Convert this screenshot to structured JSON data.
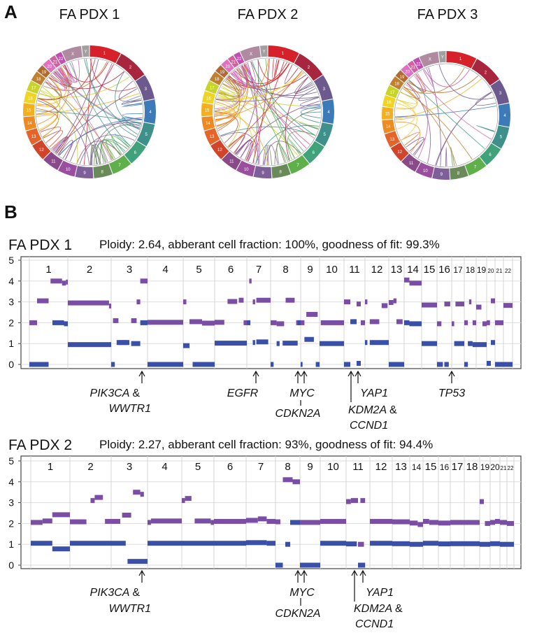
{
  "panel_a_label": "A",
  "panel_b_label": "B",
  "circos": {
    "titles": [
      "FA PDX 1",
      "FA PDX 2",
      "FA PDX 3"
    ],
    "chromosomes": [
      "1",
      "2",
      "3",
      "4",
      "5",
      "6",
      "7",
      "8",
      "9",
      "10",
      "11",
      "12",
      "13",
      "14",
      "15",
      "16",
      "17",
      "18",
      "19",
      "20",
      "21",
      "22",
      "X",
      "Y"
    ],
    "colors": [
      "#d6202a",
      "#a8253e",
      "#6c5a8f",
      "#3d7ab8",
      "#3f8f8a",
      "#3fa27a",
      "#5fb04a",
      "#6a8a5a",
      "#7e5f9a",
      "#9a4f9e",
      "#8a4a8a",
      "#d2442a",
      "#e4642a",
      "#ee8a22",
      "#f2b020",
      "#f0d422",
      "#c8d42a",
      "#c08030",
      "#b06a30",
      "#e070c0",
      "#d060a0",
      "#c050b0",
      "#b08aa0",
      "#a0a0a0"
    ]
  },
  "chart_data": [
    {
      "type": "line",
      "title": "FA PDX 1",
      "subtitle": "Ploidy: 2.64, abberant cell fraction: 100%, goodness of fit: 99.3%",
      "ylim": [
        0,
        5
      ],
      "yticks": [
        "0",
        "1",
        "2",
        "3",
        "4",
        "5"
      ],
      "grid": true,
      "categories": [
        "1",
        "2",
        "3",
        "4",
        "5",
        "6",
        "7",
        "8",
        "9",
        "10",
        "11",
        "12",
        "13",
        "14",
        "15",
        "16",
        "17",
        "18",
        "19",
        "20",
        "21",
        "22"
      ],
      "colors": {
        "total": "#7b4ea6",
        "minor": "#3a4fa8"
      },
      "series": [
        {
          "key": "total",
          "segments": [
            [
              1,
              1.2,
              2
            ],
            [
              1.2,
              1.5,
              3.05
            ],
            [
              1.55,
              1.85,
              4
            ],
            [
              1.85,
              1.95,
              3.9
            ],
            [
              1.95,
              2,
              3.95
            ],
            [
              2,
              2.95,
              2.95
            ],
            [
              2.95,
              3,
              2.8
            ],
            [
              3.05,
              3.2,
              2.1
            ],
            [
              3.2,
              3.45,
              1.05
            ],
            [
              3.55,
              3.7,
              2.1
            ],
            [
              3.7,
              3.8,
              3
            ],
            [
              3.8,
              4,
              4
            ],
            [
              4,
              5,
              2.02
            ],
            [
              5,
              5.1,
              3
            ],
            [
              5.2,
              5.6,
              2.05
            ],
            [
              5.6,
              6,
              1.98
            ],
            [
              6,
              6.3,
              2.02
            ],
            [
              6.4,
              6.7,
              3.02
            ],
            [
              6.75,
              6.9,
              3.08
            ],
            [
              6.9,
              7,
              2
            ],
            [
              7.1,
              7.2,
              4
            ],
            [
              7.25,
              7.35,
              3
            ],
            [
              7.4,
              8,
              3.08
            ],
            [
              8,
              8.2,
              2
            ],
            [
              8.2,
              8.45,
              1.95
            ],
            [
              8.5,
              8.8,
              3.08
            ],
            [
              8.85,
              9,
              2
            ],
            [
              9,
              9.2,
              2
            ],
            [
              9.3,
              9.9,
              2.4
            ],
            [
              10.05,
              11,
              2
            ],
            [
              11,
              11.3,
              3
            ],
            [
              11.4,
              11.6,
              2.05
            ],
            [
              11.6,
              11.8,
              2.9
            ],
            [
              11.8,
              12,
              2
            ],
            [
              12,
              12.1,
              3
            ],
            [
              12.2,
              12.6,
              2.05
            ],
            [
              12.7,
              12.95,
              2.82
            ],
            [
              13,
              13.3,
              2.97
            ],
            [
              13.3,
              13.5,
              3.05
            ],
            [
              13.5,
              13.9,
              2.05
            ],
            [
              14,
              14.3,
              4.05
            ],
            [
              14.3,
              15,
              3.9
            ],
            [
              15,
              16,
              2.85
            ],
            [
              16,
              16.3,
              1.95
            ],
            [
              16.5,
              16.9,
              2.9
            ],
            [
              17,
              17.2,
              1.95
            ],
            [
              17.3,
              18,
              2.9
            ],
            [
              18,
              18.3,
              2
            ],
            [
              18.4,
              18.6,
              3
            ],
            [
              18.7,
              19,
              2
            ],
            [
              19,
              19.5,
              2.75
            ],
            [
              19.6,
              20,
              1.95
            ],
            [
              20,
              20.4,
              2
            ],
            [
              20.5,
              21,
              3.05
            ],
            [
              21,
              22,
              2
            ],
            [
              22,
              23,
              2.83
            ]
          ]
        },
        {
          "key": "minor",
          "segments": [
            [
              1,
              1.5,
              0
            ],
            [
              1.6,
              1.9,
              2
            ],
            [
              1.9,
              2,
              1.95
            ],
            [
              2,
              3,
              0.95
            ],
            [
              3,
              3.1,
              0
            ],
            [
              3.15,
              3.5,
              1.05
            ],
            [
              3.55,
              3.8,
              1
            ],
            [
              3.8,
              4,
              2
            ],
            [
              4,
              5,
              0
            ],
            [
              5,
              5.2,
              0.9
            ],
            [
              5.3,
              6,
              0
            ],
            [
              6,
              7,
              1.02
            ],
            [
              7,
              7.15,
              2
            ],
            [
              7.25,
              7.35,
              1.05
            ],
            [
              7.4,
              7.9,
              1.08
            ],
            [
              8,
              8.1,
              0
            ],
            [
              8.2,
              8.3,
              1
            ],
            [
              8.4,
              8.9,
              1.02
            ],
            [
              8.9,
              9,
              2
            ],
            [
              9,
              9.1,
              0
            ],
            [
              9.2,
              9.7,
              1.2
            ],
            [
              9.8,
              10,
              0
            ],
            [
              10,
              11,
              1
            ],
            [
              11,
              11.3,
              0
            ],
            [
              11.3,
              11.6,
              2.05
            ],
            [
              11.6,
              11.8,
              0.05
            ],
            [
              12,
              12.1,
              1.05
            ],
            [
              12.2,
              13,
              1.05
            ],
            [
              13,
              14,
              0
            ],
            [
              14,
              14.3,
              2
            ],
            [
              14.3,
              15,
              1.95
            ],
            [
              15,
              16,
              1
            ],
            [
              16,
              16.4,
              0
            ],
            [
              16.5,
              16.8,
              0
            ],
            [
              17.2,
              18,
              1
            ],
            [
              18,
              18.3,
              0
            ],
            [
              18.3,
              18.7,
              1
            ],
            [
              18.7,
              19,
              0.95
            ],
            [
              19,
              20,
              0.95
            ],
            [
              20,
              20.5,
              0.05
            ],
            [
              20.5,
              21,
              1.05
            ],
            [
              21,
              22,
              0
            ],
            [
              22,
              23,
              0
            ]
          ]
        }
      ],
      "annotations": [
        {
          "gene": "PIK3CA",
          "suffix": "&",
          "gene2": "WWTR1"
        },
        {
          "gene": "EGFR"
        },
        {
          "gene": "MYC",
          "gene2": "CDKN2A"
        },
        {
          "gene": "YAP1"
        },
        {
          "gene": "KDM2A",
          "suffix": "&",
          "gene2": "CCND1"
        },
        {
          "gene": "TP53"
        }
      ]
    },
    {
      "type": "line",
      "title": "FA PDX 2",
      "subtitle": "Ploidy: 2.27, abberant cell fraction: 93%, goodness of fit: 94.4%",
      "ylim": [
        0,
        5
      ],
      "yticks": [
        "0",
        "1",
        "2",
        "3",
        "4",
        "5"
      ],
      "grid": true,
      "categories": [
        "1",
        "2",
        "3",
        "4",
        "5",
        "6",
        "7",
        "8",
        "9",
        "10",
        "11",
        "12",
        "13",
        "14",
        "15",
        "16",
        "17",
        "18",
        "19",
        "20",
        "21",
        "22"
      ],
      "colors": {
        "total": "#7b4ea6",
        "minor": "#3a4fa8"
      },
      "series": [
        {
          "key": "total",
          "segments": [
            [
              1,
              1.3,
              2.05
            ],
            [
              1.3,
              1.55,
              2.12
            ],
            [
              1.55,
              2,
              2.42
            ],
            [
              2,
              2.4,
              2.08
            ],
            [
              2.5,
              2.6,
              3.1
            ],
            [
              2.6,
              2.8,
              3.25
            ],
            [
              2.85,
              3,
              2.1
            ],
            [
              3,
              3.25,
              2.1
            ],
            [
              3.3,
              3.55,
              2.4
            ],
            [
              3.6,
              3.8,
              3.5
            ],
            [
              3.8,
              3.9,
              3.4
            ],
            [
              4,
              4.1,
              2.05
            ],
            [
              4.1,
              5,
              2.12
            ],
            [
              5,
              5.1,
              3.1
            ],
            [
              5.1,
              5.3,
              3.2
            ],
            [
              5.4,
              5.9,
              2.12
            ],
            [
              5.9,
              6,
              2.05
            ],
            [
              6,
              7,
              2.1
            ],
            [
              7,
              7.4,
              2.15
            ],
            [
              7.4,
              7.7,
              2.22
            ],
            [
              7.7,
              8,
              2.1
            ],
            [
              8,
              8.2,
              2.08
            ],
            [
              8.3,
              8.7,
              4.1
            ],
            [
              8.7,
              9,
              4
            ],
            [
              9,
              10,
              2.05
            ],
            [
              10,
              11,
              2.1
            ],
            [
              11,
              11.2,
              3.05
            ],
            [
              11.2,
              11.5,
              3.1
            ],
            [
              11.6,
              11.8,
              3.1
            ],
            [
              11.5,
              11.75,
              1
            ],
            [
              12,
              13,
              2.1
            ],
            [
              13,
              14,
              2.08
            ],
            [
              14,
              14.6,
              2.02
            ],
            [
              14.6,
              15,
              1.95
            ],
            [
              15,
              15.4,
              2.1
            ],
            [
              15.4,
              16,
              2.05
            ],
            [
              16,
              17,
              2.02
            ],
            [
              17,
              18,
              2.05
            ],
            [
              18,
              19,
              2.05
            ],
            [
              19,
              19.4,
              3.05
            ],
            [
              19.5,
              20,
              2
            ],
            [
              20,
              20.5,
              2.05
            ],
            [
              20.5,
              21,
              2.1
            ],
            [
              21,
              22,
              2.05
            ],
            [
              22,
              23,
              2
            ]
          ]
        },
        {
          "key": "minor",
          "segments": [
            [
              1,
              1.55,
              1.05
            ],
            [
              1.55,
              2,
              0.78
            ],
            [
              2,
              3,
              1.05
            ],
            [
              3,
              3.4,
              1.05
            ],
            [
              3.45,
              4,
              0.18
            ],
            [
              4,
              5,
              1.05
            ],
            [
              5,
              6,
              1.05
            ],
            [
              6,
              7,
              1.05
            ],
            [
              7,
              7.7,
              1.08
            ],
            [
              7.7,
              8,
              1.05
            ],
            [
              8,
              8.3,
              0
            ],
            [
              8.4,
              8.6,
              1
            ],
            [
              8.6,
              9,
              2.05
            ],
            [
              9,
              10,
              0
            ],
            [
              10,
              11,
              1.05
            ],
            [
              11,
              11.45,
              1.02
            ],
            [
              11.5,
              11.8,
              0
            ],
            [
              12,
              13,
              1.05
            ],
            [
              13,
              14,
              1.03
            ],
            [
              14,
              15,
              1
            ],
            [
              15,
              16,
              1.05
            ],
            [
              16,
              17,
              1.02
            ],
            [
              17,
              18,
              1.03
            ],
            [
              18,
              19,
              1.03
            ],
            [
              19,
              20,
              1
            ],
            [
              20,
              21,
              1.03
            ],
            [
              21,
              23,
              1
            ]
          ]
        }
      ],
      "annotations": [
        {
          "gene": "PIK3CA",
          "suffix": "&",
          "gene2": "WWTR1"
        },
        {
          "gene": "MYC",
          "gene2": "CDKN2A"
        },
        {
          "gene": "YAP1"
        },
        {
          "gene": "KDM2A",
          "suffix": "&",
          "gene2": "CCND1"
        }
      ]
    }
  ]
}
